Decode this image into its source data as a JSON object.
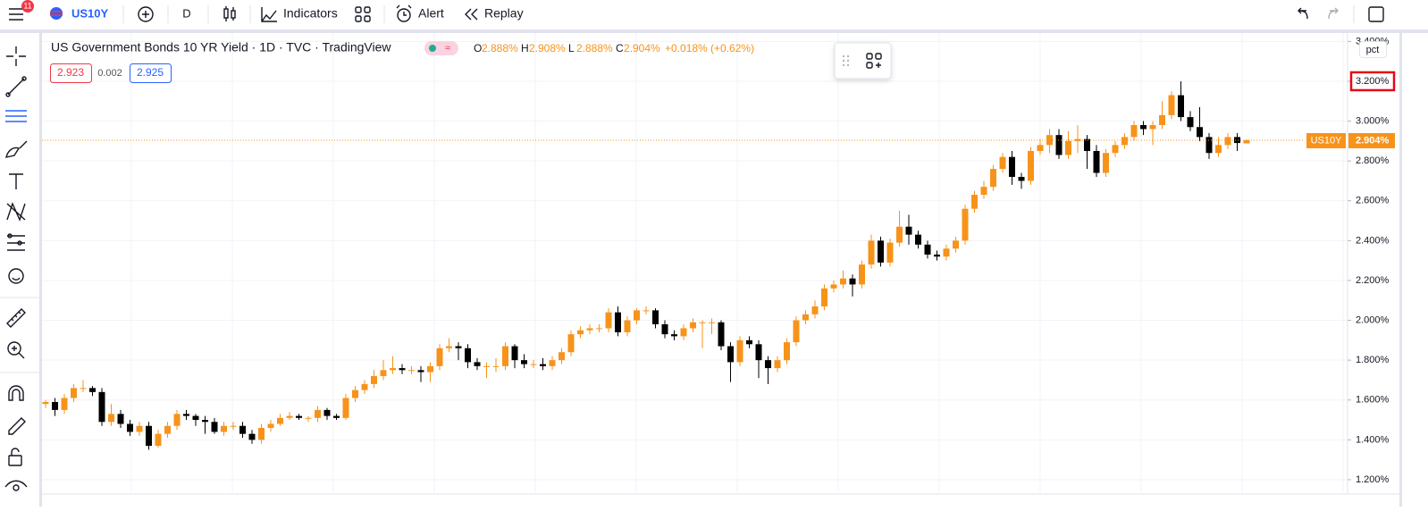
{
  "toolbar": {
    "badge": "11",
    "symbol": "US10Y",
    "interval": "D",
    "indicators": "Indicators",
    "alert": "Alert",
    "replay": "Replay"
  },
  "legend": {
    "title": "US Government Bonds 10 YR Yield · 1D · TVC · TradingView",
    "o_label": "O",
    "o_value": "2.888%",
    "h_label": "H",
    "h_value": "2.908%",
    "l_label": "L",
    "l_value": "2.888%",
    "c_label": "C",
    "c_value": "2.904%",
    "change": "+0.018% (+0.62%)",
    "bid": "2.923",
    "spread": "0.002",
    "ask": "2.925"
  },
  "price_axis": {
    "scale_button": "pct",
    "last_symbol": "US10Y",
    "last_price": "2.904%"
  },
  "chart_data": {
    "type": "candlestick",
    "up_color": "#f7931a",
    "down_color": "#000000",
    "grid": true,
    "ylim": [
      1.128,
      3.442
    ],
    "yticks": [
      {
        "value": 1.2,
        "label": "1.200%"
      },
      {
        "value": 1.4,
        "label": "1.400%"
      },
      {
        "value": 1.6,
        "label": "1.600%"
      },
      {
        "value": 1.8,
        "label": "1.800%"
      },
      {
        "value": 2.0,
        "label": "2.000%"
      },
      {
        "value": 2.2,
        "label": "2.200%"
      },
      {
        "value": 2.4,
        "label": "2.400%"
      },
      {
        "value": 2.6,
        "label": "2.600%"
      },
      {
        "value": 2.8,
        "label": "2.800%"
      },
      {
        "value": 3.0,
        "label": "3.000%"
      },
      {
        "value": 3.2,
        "label": "3.200%"
      },
      {
        "value": 3.4,
        "label": "3.400%"
      }
    ],
    "open": [
      1.58,
      1.59,
      1.55,
      1.61,
      1.66,
      1.66,
      1.64,
      1.49,
      1.53,
      1.48,
      1.44,
      1.47,
      1.37,
      1.43,
      1.47,
      1.53,
      1.52,
      1.5,
      1.49,
      1.44,
      1.47,
      1.47,
      1.43,
      1.4,
      1.46,
      1.48,
      1.51,
      1.52,
      1.51,
      1.51,
      1.55,
      1.52,
      1.51,
      1.61,
      1.65,
      1.68,
      1.72,
      1.75,
      1.76,
      1.75,
      1.75,
      1.74,
      1.77,
      1.86,
      1.87,
      1.86,
      1.79,
      1.77,
      1.77,
      1.77,
      1.87,
      1.8,
      1.78,
      1.78,
      1.77,
      1.8,
      1.84,
      1.93,
      1.95,
      1.96,
      1.96,
      2.04,
      1.94,
      2.0,
      2.05,
      2.05,
      1.98,
      1.93,
      1.92,
      1.96,
      1.99,
      1.99,
      1.99,
      1.87,
      1.79,
      1.9,
      1.88,
      1.8,
      1.76,
      1.8,
      1.89,
      2.0,
      2.03,
      2.07,
      2.16,
      2.18,
      2.21,
      2.18,
      2.28,
      2.4,
      2.29,
      2.39,
      2.47,
      2.43,
      2.38,
      2.33,
      2.32,
      2.36,
      2.4,
      2.56,
      2.63,
      2.67,
      2.76,
      2.82,
      2.72,
      2.7,
      2.85,
      2.88,
      2.93,
      2.83,
      2.9,
      2.91,
      2.85,
      2.74,
      2.84,
      2.88,
      2.92,
      2.98,
      2.96,
      2.98,
      3.03,
      3.13,
      3.02,
      2.97,
      2.92,
      2.84,
      2.88,
      2.92,
      2.888
    ],
    "high": [
      1.6,
      1.61,
      1.63,
      1.68,
      1.7,
      1.67,
      1.66,
      1.58,
      1.55,
      1.5,
      1.49,
      1.49,
      1.45,
      1.49,
      1.55,
      1.55,
      1.53,
      1.52,
      1.51,
      1.49,
      1.49,
      1.49,
      1.45,
      1.48,
      1.5,
      1.53,
      1.54,
      1.53,
      1.52,
      1.57,
      1.56,
      1.53,
      1.63,
      1.67,
      1.7,
      1.75,
      1.8,
      1.82,
      1.78,
      1.77,
      1.77,
      1.79,
      1.88,
      1.91,
      1.89,
      1.88,
      1.81,
      1.79,
      1.81,
      1.89,
      1.88,
      1.83,
      1.8,
      1.81,
      1.82,
      1.86,
      1.95,
      1.97,
      1.98,
      1.98,
      2.06,
      2.07,
      2.02,
      2.06,
      2.07,
      2.06,
      2.0,
      1.95,
      1.98,
      2.01,
      2.0,
      2.01,
      2.0,
      1.89,
      1.92,
      1.92,
      1.9,
      1.82,
      1.82,
      1.91,
      2.02,
      2.05,
      2.1,
      2.18,
      2.2,
      2.25,
      2.23,
      2.3,
      2.43,
      2.42,
      2.41,
      2.55,
      2.53,
      2.45,
      2.4,
      2.35,
      2.38,
      2.42,
      2.58,
      2.65,
      2.7,
      2.78,
      2.84,
      2.85,
      2.74,
      2.87,
      2.91,
      2.96,
      2.96,
      2.95,
      2.98,
      2.93,
      2.88,
      2.86,
      2.9,
      2.94,
      3.0,
      3.0,
      3.0,
      3.1,
      3.15,
      3.2,
      3.05,
      3.07,
      2.94,
      2.92,
      2.94,
      2.94,
      2.908
    ],
    "low": [
      1.56,
      1.52,
      1.53,
      1.59,
      1.64,
      1.62,
      1.47,
      1.47,
      1.46,
      1.42,
      1.42,
      1.35,
      1.36,
      1.41,
      1.45,
      1.5,
      1.47,
      1.43,
      1.43,
      1.42,
      1.45,
      1.41,
      1.38,
      1.38,
      1.44,
      1.47,
      1.5,
      1.5,
      1.49,
      1.49,
      1.5,
      1.5,
      1.5,
      1.59,
      1.63,
      1.66,
      1.7,
      1.73,
      1.73,
      1.73,
      1.69,
      1.69,
      1.75,
      1.84,
      1.8,
      1.76,
      1.75,
      1.71,
      1.74,
      1.75,
      1.76,
      1.76,
      1.76,
      1.75,
      1.75,
      1.78,
      1.82,
      1.91,
      1.93,
      1.94,
      1.94,
      1.92,
      1.92,
      1.98,
      2.03,
      1.96,
      1.91,
      1.9,
      1.9,
      1.94,
      1.86,
      1.93,
      1.85,
      1.69,
      1.77,
      1.86,
      1.71,
      1.68,
      1.74,
      1.78,
      1.87,
      1.98,
      2.01,
      2.05,
      2.14,
      2.16,
      2.12,
      2.16,
      2.26,
      2.27,
      2.27,
      2.37,
      2.38,
      2.36,
      2.31,
      2.3,
      2.3,
      2.34,
      2.38,
      2.54,
      2.61,
      2.65,
      2.74,
      2.68,
      2.66,
      2.68,
      2.83,
      2.84,
      2.81,
      2.81,
      2.84,
      2.76,
      2.72,
      2.72,
      2.82,
      2.86,
      2.9,
      2.93,
      2.88,
      2.96,
      3.01,
      3.0,
      2.95,
      2.9,
      2.81,
      2.82,
      2.86,
      2.85,
      2.888
    ],
    "close": [
      1.59,
      1.55,
      1.61,
      1.66,
      1.66,
      1.64,
      1.49,
      1.53,
      1.48,
      1.44,
      1.47,
      1.37,
      1.43,
      1.47,
      1.53,
      1.52,
      1.5,
      1.49,
      1.44,
      1.47,
      1.47,
      1.43,
      1.4,
      1.46,
      1.48,
      1.51,
      1.52,
      1.51,
      1.51,
      1.55,
      1.52,
      1.51,
      1.61,
      1.65,
      1.68,
      1.72,
      1.75,
      1.76,
      1.75,
      1.75,
      1.74,
      1.77,
      1.86,
      1.87,
      1.86,
      1.79,
      1.77,
      1.77,
      1.77,
      1.87,
      1.8,
      1.78,
      1.78,
      1.77,
      1.8,
      1.84,
      1.93,
      1.95,
      1.96,
      1.96,
      2.04,
      1.94,
      2.0,
      2.05,
      2.05,
      1.98,
      1.93,
      1.92,
      1.96,
      1.99,
      1.99,
      1.99,
      1.87,
      1.79,
      1.9,
      1.88,
      1.8,
      1.76,
      1.8,
      1.89,
      2.0,
      2.03,
      2.07,
      2.16,
      2.18,
      2.21,
      2.18,
      2.28,
      2.4,
      2.29,
      2.39,
      2.47,
      2.43,
      2.38,
      2.33,
      2.32,
      2.36,
      2.4,
      2.56,
      2.63,
      2.67,
      2.76,
      2.82,
      2.72,
      2.7,
      2.85,
      2.88,
      2.93,
      2.83,
      2.9,
      2.91,
      2.85,
      2.74,
      2.84,
      2.88,
      2.92,
      2.98,
      2.96,
      2.98,
      3.03,
      3.13,
      3.02,
      2.97,
      2.92,
      2.84,
      2.88,
      2.92,
      2.89,
      2.904
    ],
    "highlight_tick": 10
  }
}
